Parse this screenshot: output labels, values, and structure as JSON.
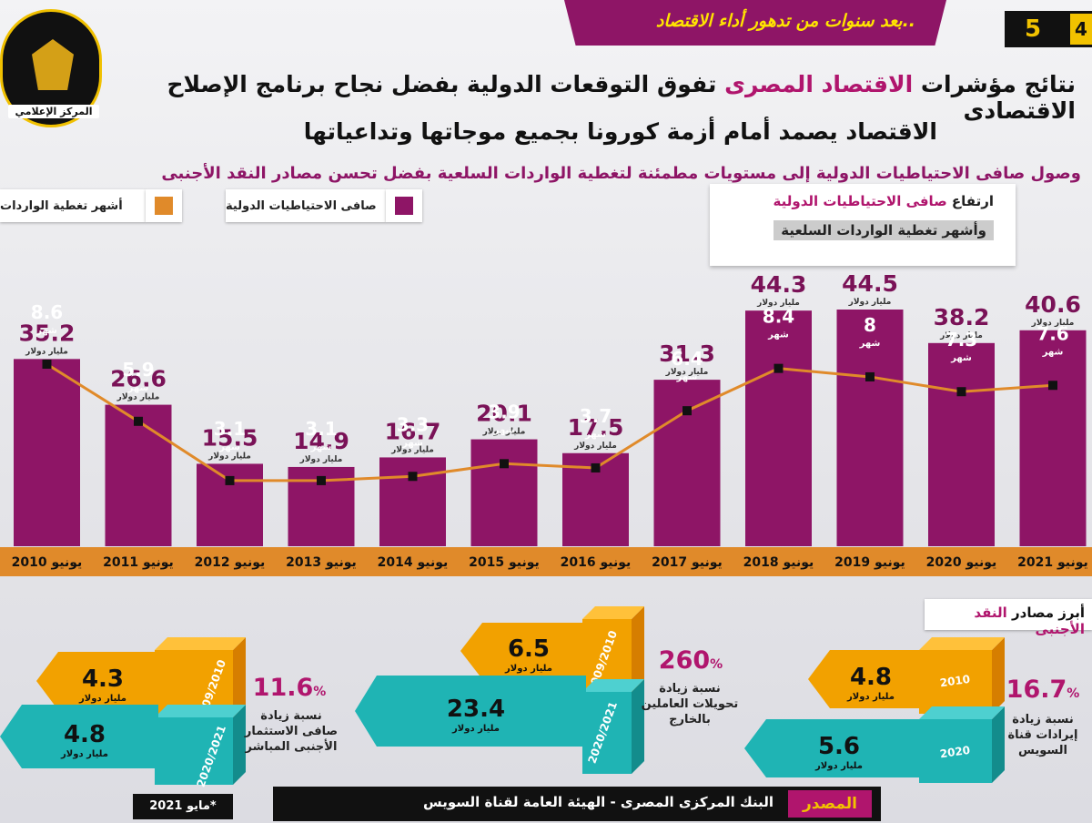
{
  "header": {
    "ribbon_text": "بعد سنوات من تدهور أداء الاقتصاد..",
    "page_number": "5",
    "page_number_2": "4",
    "logo_text": "المركز الإعلامي",
    "title_line1_prefix": "نتائج مؤشرات ",
    "title_line1_highlight": "الاقتصاد المصرى",
    "title_line1_suffix": " تفوق التوقعات الدولية بفضل نجاح برنامج الإصلاح الاقتصادى",
    "title_line2": "الاقتصاد يصمد أمام أزمة كورونا بجميع موجاتها وتداعياتها",
    "subtitle": "وصول صافى الاحتياطيات الدولية إلى مستويات مطمئنة لتغطية الواردات السلعية بفضل تحسن مصادر النقد الأجنبى"
  },
  "legend": {
    "reserves_label": "صافى الاحتياطيات الدولية",
    "months_label": "أشهر تغطية الواردات",
    "reserves_color": "#8e1566",
    "months_color": "#e08a2a"
  },
  "note": {
    "line1_prefix": "ارتفاع ",
    "line1_highlight": "صافى الاحتياطيات الدولية",
    "line2": "وأشهر تغطية الواردات السلعية"
  },
  "chart_data": {
    "type": "bar",
    "categories": [
      "يونيو 2010",
      "يونيو 2011",
      "يونيو 2012",
      "يونيو 2013",
      "يونيو 2014",
      "يونيو 2015",
      "يونيو 2016",
      "يونيو 2017",
      "يونيو 2018",
      "يونيو 2019",
      "يونيو 2020",
      "يونيو 2021"
    ],
    "series": [
      {
        "name": "صافى الاحتياطيات الدولية",
        "unit": "مليار دولار",
        "values": [
          35.2,
          26.6,
          15.5,
          14.9,
          16.7,
          20.1,
          17.5,
          31.3,
          44.3,
          44.5,
          38.2,
          40.6
        ]
      },
      {
        "name": "أشهر تغطية الواردات",
        "unit": "شهر",
        "values": [
          8.6,
          5.9,
          3.1,
          3.1,
          3.3,
          3.9,
          3.7,
          6.4,
          8.4,
          8.0,
          7.3,
          7.6
        ]
      }
    ],
    "value_labels_reserves": [
      "35.2",
      "26.6",
      "15.5",
      "14.9",
      "16.7",
      "20.1",
      "17.5",
      "31.3",
      "44.3",
      "44.5",
      "38.2",
      "40.6"
    ],
    "value_labels_months": [
      "8.6",
      "5.9",
      "3.1",
      "3.1",
      "3.3",
      "3.9",
      "3.7",
      "6.4",
      "8.4",
      "8",
      "7.3",
      "7.6"
    ]
  },
  "sources": {
    "title_prefix": "أبرز مصادر ",
    "title_highlight": "النقد الأجنبى",
    "unit": "مليار دولار",
    "items": [
      {
        "top_value": "4.8",
        "top_period": "2010",
        "bottom_value": "5.6",
        "bottom_period": "2020",
        "pct": "16.7",
        "pct_sign": "%",
        "desc": "نسبة زيادة إيرادات قناة السويس"
      },
      {
        "top_value": "6.5",
        "top_period": "يوليو 2009 مارس 2010",
        "bottom_value": "23.4",
        "bottom_period": "يوليو 2020 مارس 2021",
        "pct": "260",
        "pct_sign": "%",
        "desc": "نسبة زيادة تحويلات العاملين بالخارج"
      },
      {
        "top_value": "4.3",
        "top_period": "يوليو 2009 مارس 2010",
        "bottom_value": "4.8",
        "bottom_period": "يوليو 2020 مارس 2021",
        "pct": "11.6",
        "pct_sign": "%",
        "desc": "نسبة زيادة صافى الاستثمار الأجنبى المباشر"
      }
    ]
  },
  "footer": {
    "source_label": "المصدر",
    "source_text": "البنك المركزى المصرى - الهيئة العامة لقناة السويس",
    "date_note": "*مايو 2021"
  }
}
